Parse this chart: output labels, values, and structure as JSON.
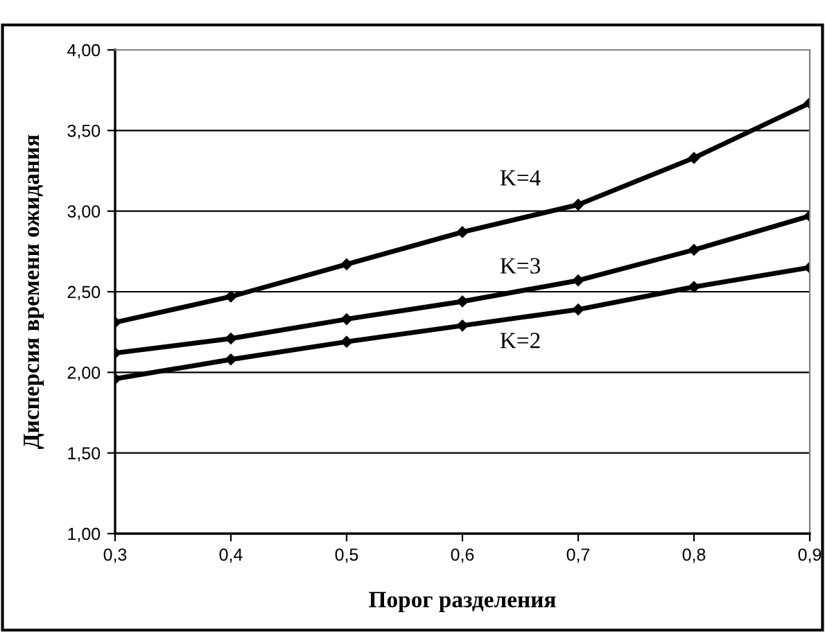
{
  "chart_data": {
    "type": "line",
    "xlabel": "Порог разделения",
    "ylabel": "Дисперсия времени ожидания",
    "x": [
      0.3,
      0.4,
      0.5,
      0.6,
      0.7,
      0.8,
      0.9
    ],
    "series": [
      {
        "name": "K=4",
        "color": "#000000",
        "values": [
          2.31,
          2.47,
          2.67,
          2.87,
          3.04,
          3.33,
          3.67
        ]
      },
      {
        "name": "K=3",
        "color": "#000000",
        "values": [
          2.12,
          2.21,
          2.33,
          2.44,
          2.57,
          2.76,
          2.97
        ]
      },
      {
        "name": "K=2",
        "color": "#000000",
        "values": [
          1.96,
          2.08,
          2.19,
          2.29,
          2.39,
          2.53,
          2.65
        ]
      }
    ],
    "xlim": [
      0.3,
      0.9
    ],
    "ylim": [
      1.0,
      4.0
    ],
    "xticks": [
      {
        "value": 0.3,
        "label": "0,3"
      },
      {
        "value": 0.4,
        "label": "0,4"
      },
      {
        "value": 0.5,
        "label": "0,5"
      },
      {
        "value": 0.6,
        "label": "0,6"
      },
      {
        "value": 0.7,
        "label": "0,7"
      },
      {
        "value": 0.8,
        "label": "0,8"
      },
      {
        "value": 0.9,
        "label": "0,9"
      }
    ],
    "yticks": [
      {
        "value": 1.0,
        "label": "1,00"
      },
      {
        "value": 1.5,
        "label": "1,50"
      },
      {
        "value": 2.0,
        "label": "2,00"
      },
      {
        "value": 2.5,
        "label": "2,50"
      },
      {
        "value": 3.0,
        "label": "3,00"
      },
      {
        "value": 3.5,
        "label": "3,50"
      },
      {
        "value": 4.0,
        "label": "4,00"
      }
    ],
    "grid": "y",
    "marker": "diamond",
    "line_style": "solid"
  }
}
